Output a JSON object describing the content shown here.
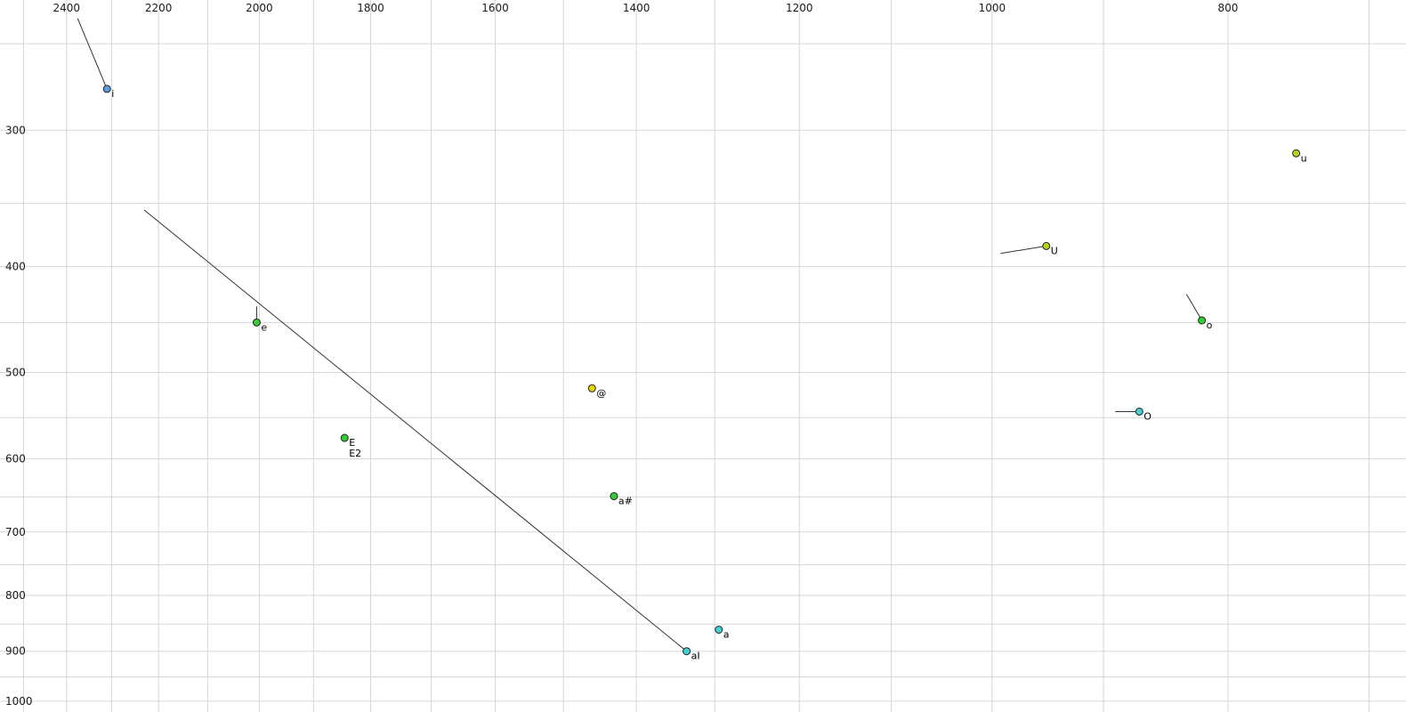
{
  "chart_data": {
    "type": "scatter",
    "title": "",
    "x_axis": {
      "position": "top",
      "scale": "log",
      "direction": "decreasing-to-right",
      "unit": "Hz",
      "ticks": [
        2400,
        2200,
        2000,
        1800,
        1600,
        1400,
        1200,
        1000,
        800
      ],
      "minor_gridline_step": 100,
      "range": [
        2556,
        676
      ]
    },
    "y_axis": {
      "position": "left",
      "scale": "log",
      "direction": "increasing-down",
      "unit": "Hz",
      "ticks": [
        300,
        400,
        500,
        600,
        700,
        800,
        900,
        1000
      ],
      "minor_gridline_step": 50,
      "range": [
        228,
        1023
      ]
    },
    "grid": true,
    "gridline_color": "#d6d6d6",
    "tick_label_color": "#1a1a1a",
    "glide_line_color": "#333333",
    "point_stroke_color": "#222222",
    "point_radius": 4,
    "tick_font_px": 12,
    "label_font_px": 11,
    "points": [
      {
        "label": "i",
        "f2": 2310,
        "f1": 275,
        "color": "#5b9ddb",
        "glide": {
          "f2": 2375,
          "f1": 237
        }
      },
      {
        "label": "e",
        "f2": 2005,
        "f1": 450,
        "color": "#33cc33",
        "glide": {
          "f2": 2005,
          "f1": 435
        }
      },
      {
        "label": "E",
        "sublabel": "E2",
        "f2": 1845,
        "f1": 574,
        "color": "#33cc33"
      },
      {
        "label": "@",
        "f2": 1460,
        "f1": 517,
        "color": "#e6d500"
      },
      {
        "label": "a#",
        "f2": 1430,
        "f1": 649,
        "color": "#33cc33"
      },
      {
        "label": "aI",
        "f2": 1335,
        "f1": 900,
        "color": "#44cfd4",
        "glide": {
          "f2": 2230,
          "f1": 355
        }
      },
      {
        "label": "a",
        "f2": 1295,
        "f1": 860,
        "color": "#44cfd4"
      },
      {
        "label": "O",
        "f2": 870,
        "f1": 543,
        "color": "#44cfd4",
        "glide": {
          "f2": 890,
          "f1": 543
        }
      },
      {
        "label": "o",
        "f2": 820,
        "f1": 448,
        "color": "#33cc33",
        "glide": {
          "f2": 832,
          "f1": 424
        }
      },
      {
        "label": "U",
        "f2": 950,
        "f1": 383,
        "color": "#b8d11e",
        "glide": {
          "f2": 992,
          "f1": 389
        }
      },
      {
        "label": "u",
        "f2": 750,
        "f1": 315,
        "color": "#b8d11e"
      }
    ]
  }
}
